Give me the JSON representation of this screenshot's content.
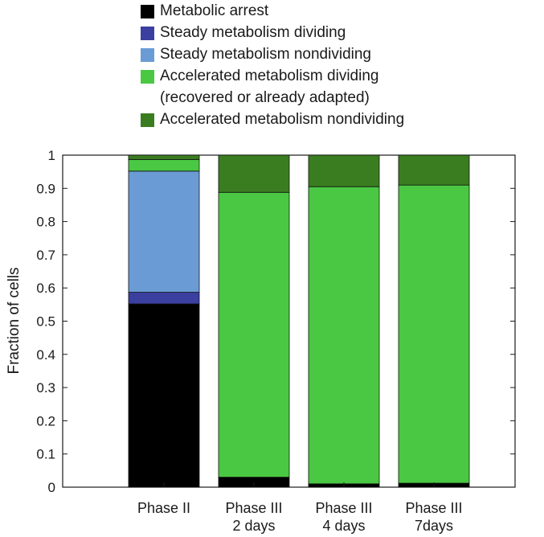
{
  "chart_data": {
    "type": "bar",
    "stacked": true,
    "categories": [
      "Phase II",
      "Phase III\n2 days",
      "Phase III\n4 days",
      "Phase III\n7days"
    ],
    "series": [
      {
        "name": "Metabolic arrest",
        "color": "#000000",
        "values": [
          0.552,
          0.03,
          0.01,
          0.012
        ]
      },
      {
        "name": "Steady metabolism dividing",
        "color": "#3a3fa0",
        "values": [
          0.035,
          0.0,
          0.0,
          0.0
        ]
      },
      {
        "name": "Steady metabolism nondividing",
        "color": "#6a9bd4",
        "values": [
          0.365,
          0.0,
          0.0,
          0.0
        ]
      },
      {
        "name": "Accelerated metabolism dividing\n(recovered or already adapted)",
        "color": "#4ac843",
        "values": [
          0.035,
          0.858,
          0.895,
          0.898
        ]
      },
      {
        "name": "Accelerated metabolism nondividing",
        "color": "#3a7d20",
        "values": [
          0.013,
          0.112,
          0.095,
          0.09
        ]
      }
    ],
    "ylabel": "Fraction of cells",
    "xlabel": "",
    "ylim": [
      0,
      1
    ],
    "yticks": [
      0,
      0.1,
      0.2,
      0.3,
      0.4,
      0.5,
      0.6,
      0.7,
      0.8,
      0.9,
      1
    ],
    "ytick_labels": [
      "0",
      "0.1",
      "0.2",
      "0.3",
      "0.4",
      "0.5",
      "0.6",
      "0.7",
      "0.8",
      "0.9",
      "1"
    ],
    "grid": false,
    "legend_position": "top"
  }
}
